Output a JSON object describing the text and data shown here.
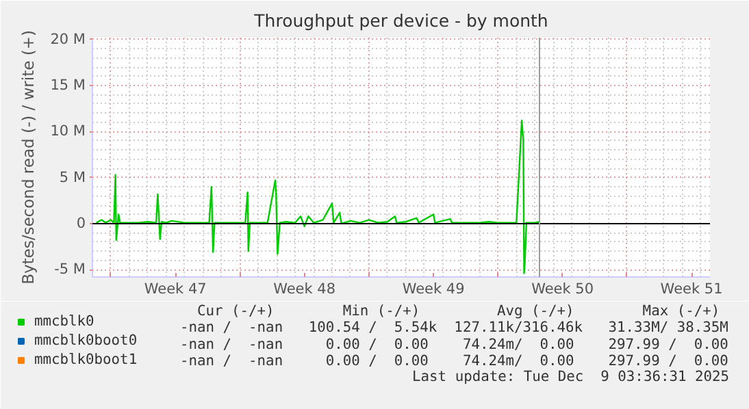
{
  "chart_data": {
    "type": "line",
    "title": "Throughput per device - by month",
    "ylabel": "Bytes/second read (-) / write (+)",
    "xlim": [
      "2025-11-16T00:00",
      "2025-12-19T12:00"
    ],
    "ylim": [
      -5.8,
      20.2
    ],
    "xticks": [
      {
        "value": "2025-11-17",
        "label": null
      },
      {
        "value": "2025-11-20T12:00",
        "label": "Week 47"
      },
      {
        "value": "2025-11-24",
        "label": null
      },
      {
        "value": "2025-11-27T12:00",
        "label": "Week 48"
      },
      {
        "value": "2025-12-01",
        "label": null
      },
      {
        "value": "2025-12-04T12:00",
        "label": "Week 49"
      },
      {
        "value": "2025-12-08",
        "label": null
      },
      {
        "value": "2025-12-11T12:00",
        "label": "Week 50"
      },
      {
        "value": "2025-12-15",
        "label": null
      },
      {
        "value": "2025-12-18T12:00",
        "label": "Week 51"
      }
    ],
    "yticks": [
      {
        "value": -5,
        "label": "-5 M"
      },
      0,
      {
        "value": 5,
        "label": "5 M"
      },
      {
        "value": 10,
        "label": "10 M"
      },
      {
        "value": 15,
        "label": "15 M"
      },
      {
        "value": 20,
        "label": "20 M"
      }
    ],
    "grid": true,
    "legend": "bottom left",
    "marker": "none",
    "line_style": "solid",
    "series": [
      {
        "name": "mmcblk0",
        "color": "#00cc00",
        "x": [
          "2025-11-16T05:00",
          "2025-11-16T12:00",
          "2025-11-16T17:00",
          "2025-11-17T00:00",
          "2025-11-17T04:00",
          "2025-11-17T06:00",
          "2025-11-17T07:00",
          "2025-11-17T10:00",
          "2025-11-17T12:00",
          "2025-11-18T00:00",
          "2025-11-18T12:00",
          "2025-11-19T00:00",
          "2025-11-19T11:00",
          "2025-11-19T13:00",
          "2025-11-19T16:00",
          "2025-11-19T18:00",
          "2025-11-20T00:00",
          "2025-11-20T07:00",
          "2025-11-21T00:00",
          "2025-11-22T00:00",
          "2025-11-22T08:00",
          "2025-11-22T11:00",
          "2025-11-22T13:00",
          "2025-11-22T15:00",
          "2025-11-23T12:00",
          "2025-11-24T07:00",
          "2025-11-24T10:00",
          "2025-11-24T11:00",
          "2025-11-24T13:00",
          "2025-11-25T12:00",
          "2025-11-25T22:00",
          "2025-11-25T23:00",
          "2025-11-26T01:00",
          "2025-11-26T04:00",
          "2025-11-26T12:00",
          "2025-11-27T00:00",
          "2025-11-27T07:00",
          "2025-11-27T12:00",
          "2025-11-27T17:00",
          "2025-11-28T00:00",
          "2025-11-28T12:00",
          "2025-11-29T00:00",
          "2025-11-29T02:00",
          "2025-11-29T10:00",
          "2025-11-29T12:00",
          "2025-11-30T00:00",
          "2025-11-30T12:00",
          "2025-12-01T00:00",
          "2025-12-01T12:00",
          "2025-12-02T00:00",
          "2025-12-02T10:00",
          "2025-12-02T12:00",
          "2025-12-03T00:00",
          "2025-12-03T14:00",
          "2025-12-03T17:00",
          "2025-12-04T12:00",
          "2025-12-04T14:00",
          "2025-12-05T10:00",
          "2025-12-05T12:00",
          "2025-12-06T00:00",
          "2025-12-07T00:00",
          "2025-12-07T12:00",
          "2025-12-08T00:00",
          "2025-12-09T00:00",
          "2025-12-09T07:00",
          "2025-12-09T09:00",
          "2025-12-09T10:00",
          "2025-12-09T11:00",
          "2025-12-09T13:00",
          "2025-12-10T00:00",
          "2025-12-10T06:00"
        ],
        "values": [
          0.1,
          0.4,
          0.1,
          0.4,
          0.1,
          5.3,
          -1.8,
          1.0,
          0.1,
          0.1,
          0.1,
          0.2,
          0.1,
          3.2,
          -1.7,
          0.2,
          0.1,
          0.3,
          0.1,
          0.1,
          0.1,
          4.0,
          -3.1,
          0.1,
          0.1,
          0.1,
          3.4,
          -3.0,
          0.1,
          0.1,
          4.7,
          3.6,
          -3.3,
          0.1,
          0.2,
          0.1,
          0.8,
          -0.3,
          0.8,
          0.1,
          0.4,
          2.2,
          0.1,
          1.2,
          0.0,
          0.3,
          0.1,
          0.4,
          0.1,
          0.2,
          0.8,
          0.1,
          0.2,
          0.6,
          0.1,
          1.0,
          0.1,
          0.5,
          0.1,
          0.1,
          0.1,
          0.2,
          0.1,
          0.1,
          11.2,
          9.0,
          -5.4,
          -4.2,
          0.1,
          0.1,
          0.2
        ]
      },
      {
        "name": "mmcblk0boot0",
        "color": "#0066b3"
      },
      {
        "name": "mmcblk0boot1",
        "color": "#ff8000"
      }
    ],
    "ref_lines": [
      {
        "axis": "y",
        "value": 0,
        "color": "#000000"
      },
      {
        "axis": "x",
        "value": "2025-12-10T06:00",
        "color": "#999999"
      }
    ],
    "annotations": [
      "  Cur (-/+)        Min (-/+)         Avg (-/+)        Max (-/+)",
      "-nan /  -nan   100.54 /  5.54k  127.11k/316.46k   31.33M/ 38.35M",
      "-nan /  -nan     0.00 /  0.00    74.24m/  0.00    297.99 /  0.00",
      "-nan /  -nan     0.00 /  0.00    74.24m/  0.00    297.99 /  0.00",
      "Last update: Tue Dec  9 03:36:31 2025"
    ]
  }
}
